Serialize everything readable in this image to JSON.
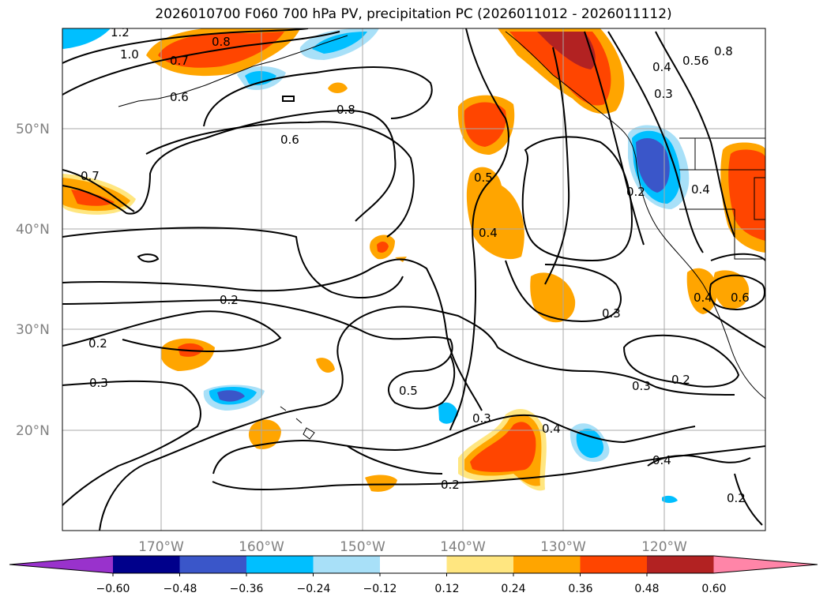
{
  "title": "2026010700 F060 700 hPa PV, precipitation PC (2026011012 - 2026011112)",
  "map": {
    "lat_labels": [
      "50°N",
      "40°N",
      "30°N",
      "20°N"
    ],
    "lon_labels": [
      "170°W",
      "160°W",
      "150°W",
      "140°W",
      "130°W",
      "120°W"
    ],
    "contour_labels": [
      "1.2",
      "1.0",
      "0.8",
      "0.7",
      "0.6",
      "0.8",
      "0.6",
      "0.7",
      "0.5",
      "0.4",
      "0.2",
      "0.2",
      "0.3",
      "0.2",
      "0.5",
      "0.3",
      "0.4",
      "0.3",
      "0.2",
      "0.3",
      "0.4",
      "0.2",
      "0.4",
      "0.3",
      "0.56",
      "0.8",
      "0.4",
      "0.2",
      "0.4",
      "0.6"
    ]
  },
  "colorbar": {
    "tick_labels": [
      "−0.60",
      "−0.48",
      "−0.36",
      "−0.24",
      "−0.12",
      "0.12",
      "0.24",
      "0.36",
      "0.48",
      "0.60"
    ],
    "colors": [
      "#9932cc",
      "#00008b",
      "#3a56c9",
      "#00bfff",
      "#a8e0f8",
      "#ffffff",
      "#ffe680",
      "#ffa500",
      "#ff4500",
      "#b22222",
      "#ff85a8"
    ]
  }
}
